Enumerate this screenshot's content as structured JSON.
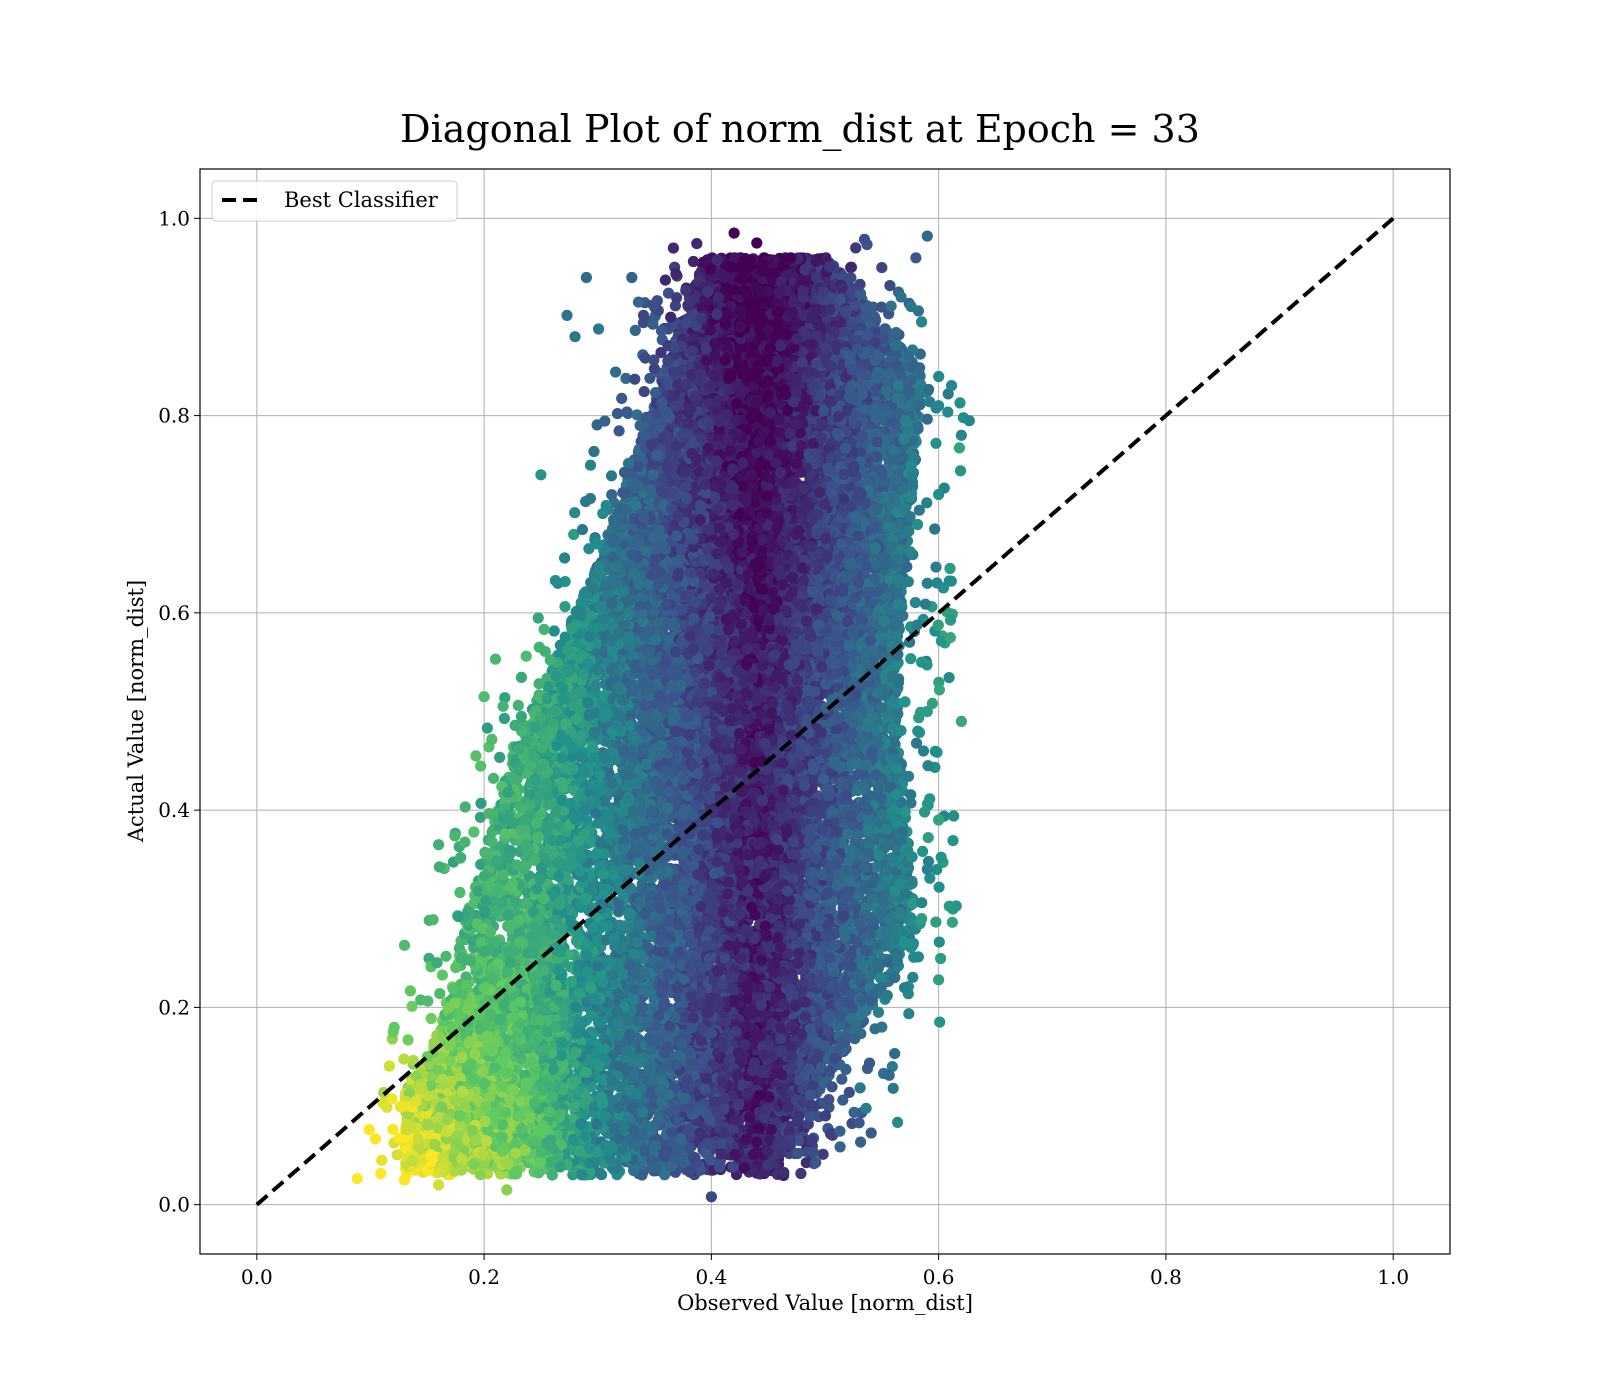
{
  "chart_data": {
    "type": "scatter",
    "title": "Diagonal Plot of norm_dist at Epoch = 33",
    "xlabel": "Observed Value [norm_dist]",
    "ylabel": "Actual Value [norm_dist]",
    "xlim": [
      -0.05,
      1.05
    ],
    "ylim": [
      -0.05,
      1.05
    ],
    "xticks": [
      "0.0",
      "0.2",
      "0.4",
      "0.6",
      "0.8",
      "1.0"
    ],
    "yticks": [
      "0.0",
      "0.2",
      "0.4",
      "0.6",
      "0.8",
      "1.0"
    ],
    "xtick_values": [
      0.0,
      0.2,
      0.4,
      0.6,
      0.8,
      1.0
    ],
    "ytick_values": [
      0.0,
      0.2,
      0.4,
      0.6,
      0.8,
      1.0
    ],
    "grid": true,
    "legend_position": "top-left",
    "legend": [
      {
        "label": "Best Classifier",
        "style": "dashed",
        "color": "#000000"
      }
    ],
    "reference_line": {
      "name": "Best Classifier",
      "x": [
        0.0,
        1.0
      ],
      "y": [
        0.0,
        1.0
      ],
      "color": "#000000",
      "style": "dashed"
    },
    "colormap": "viridis",
    "colormap_stops": [
      "#440154",
      "#3b528b",
      "#21918c",
      "#5ec962",
      "#fde725"
    ],
    "point_cloud": {
      "description_of_extent": "dense cluster",
      "x_range": [
        0.11,
        0.62
      ],
      "y_range": [
        0.007,
        0.985
      ],
      "sample_points": [
        [
          0.42,
          0.985
        ],
        [
          0.44,
          0.975
        ],
        [
          0.59,
          0.982
        ],
        [
          0.29,
          0.94
        ],
        [
          0.33,
          0.94
        ],
        [
          0.58,
          0.96
        ],
        [
          0.62,
          0.78
        ],
        [
          0.62,
          0.49
        ],
        [
          0.61,
          0.645
        ],
        [
          0.6,
          0.228
        ],
        [
          0.56,
          0.118
        ],
        [
          0.53,
          0.083
        ],
        [
          0.45,
          0.04
        ],
        [
          0.4,
          0.008
        ],
        [
          0.22,
          0.015
        ],
        [
          0.16,
          0.02
        ],
        [
          0.13,
          0.025
        ],
        [
          0.11,
          0.045
        ],
        [
          0.12,
          0.175
        ],
        [
          0.13,
          0.263
        ],
        [
          0.16,
          0.365
        ],
        [
          0.2,
          0.515
        ],
        [
          0.21,
          0.553
        ],
        [
          0.25,
          0.74
        ],
        [
          0.28,
          0.88
        ],
        [
          0.2,
          0.22
        ],
        [
          0.15,
          0.15
        ],
        [
          0.14,
          0.105
        ],
        [
          0.18,
          0.035
        ],
        [
          0.26,
          0.03
        ],
        [
          0.47,
          0.96
        ],
        [
          0.55,
          0.95
        ],
        [
          0.585,
          0.895
        ],
        [
          0.6,
          0.81
        ],
        [
          0.6,
          0.72
        ],
        [
          0.59,
          0.63
        ],
        [
          0.585,
          0.55
        ],
        [
          0.59,
          0.5
        ],
        [
          0.6,
          0.39
        ],
        [
          0.59,
          0.34
        ],
        [
          0.585,
          0.29
        ],
        [
          0.57,
          0.22
        ],
        [
          0.55,
          0.18
        ]
      ]
    }
  }
}
